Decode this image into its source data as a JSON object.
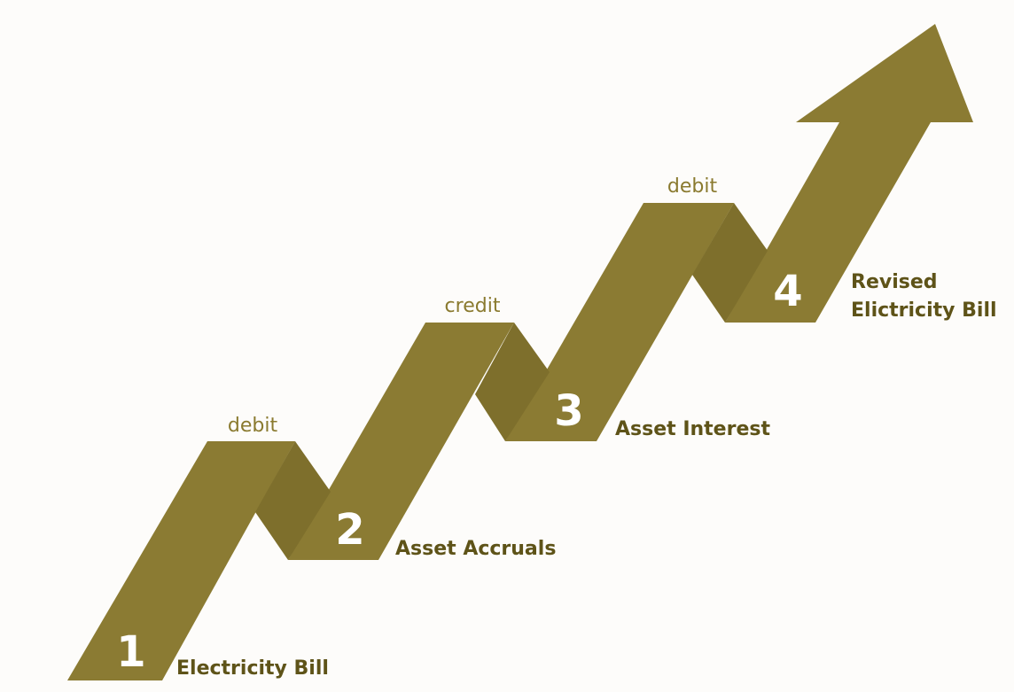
{
  "colors": {
    "background": "#fdfcfa",
    "band": "#8b7b33",
    "fold_shadow": "#7e6f2c",
    "number_text": "#ffffff",
    "step_label_text": "#5e5318",
    "peak_label_text": "#8a7a2f"
  },
  "steps": [
    {
      "number": "1",
      "label_lines": [
        "Electricity Bill"
      ]
    },
    {
      "number": "2",
      "label_lines": [
        "Asset Accruals"
      ]
    },
    {
      "number": "3",
      "label_lines": [
        "Asset Interest"
      ]
    },
    {
      "number": "4",
      "label_lines": [
        "Revised",
        "Elictricity Bill"
      ]
    }
  ],
  "peaks": [
    {
      "label": "debit"
    },
    {
      "label": "credit"
    },
    {
      "label": "debit"
    }
  ]
}
